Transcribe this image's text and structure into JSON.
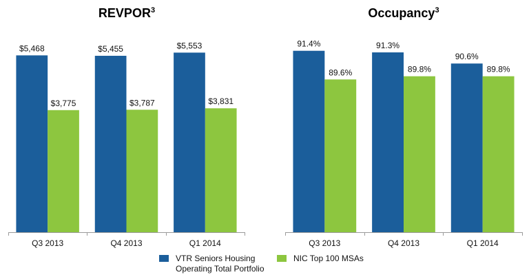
{
  "colors": {
    "vtr": "#1b5e9b",
    "nic": "#8dc63f",
    "axis": "#9a9a9a"
  },
  "legend": [
    {
      "name": "VTR Seniors Housing",
      "name2": "Operating Total Portfolio",
      "color": "#1b5e9b"
    },
    {
      "name": "NIC Top 100 MSAs",
      "color": "#8dc63f"
    }
  ],
  "chart_data": [
    {
      "type": "bar",
      "title": "REVPOR",
      "title_sup": "3",
      "categories": [
        "Q3 2013",
        "Q4 2013",
        "Q1 2014"
      ],
      "series": [
        {
          "name": "VTR Seniors Housing Operating Total Portfolio",
          "values": [
            5468,
            5455,
            5553
          ],
          "labels": [
            "$5,468",
            "$5,455",
            "$5,553"
          ]
        },
        {
          "name": "NIC Top 100 MSAs",
          "values": [
            3775,
            3787,
            3831
          ],
          "labels": [
            "$3,775",
            "$3,787",
            "$3,831"
          ]
        }
      ],
      "ylim": [
        0,
        6200
      ],
      "xlabel": "",
      "ylabel": "",
      "grid": false,
      "legend": "bottom"
    },
    {
      "type": "bar",
      "title": "Occupancy",
      "title_sup": "3",
      "categories": [
        "Q3 2013",
        "Q4 2013",
        "Q1 2014"
      ],
      "series": [
        {
          "name": "VTR Seniors Housing Operating Total Portfolio",
          "values": [
            91.4,
            91.3,
            90.6
          ],
          "labels": [
            "91.4%",
            "91.3%",
            "90.6%"
          ]
        },
        {
          "name": "NIC Top 100 MSAs",
          "values": [
            89.6,
            89.8,
            89.8
          ],
          "labels": [
            "89.6%",
            "89.8%",
            "89.8%"
          ]
        }
      ],
      "ylim": [
        80,
        92.6
      ],
      "xlabel": "",
      "ylabel": "",
      "grid": false,
      "legend": "bottom"
    }
  ]
}
